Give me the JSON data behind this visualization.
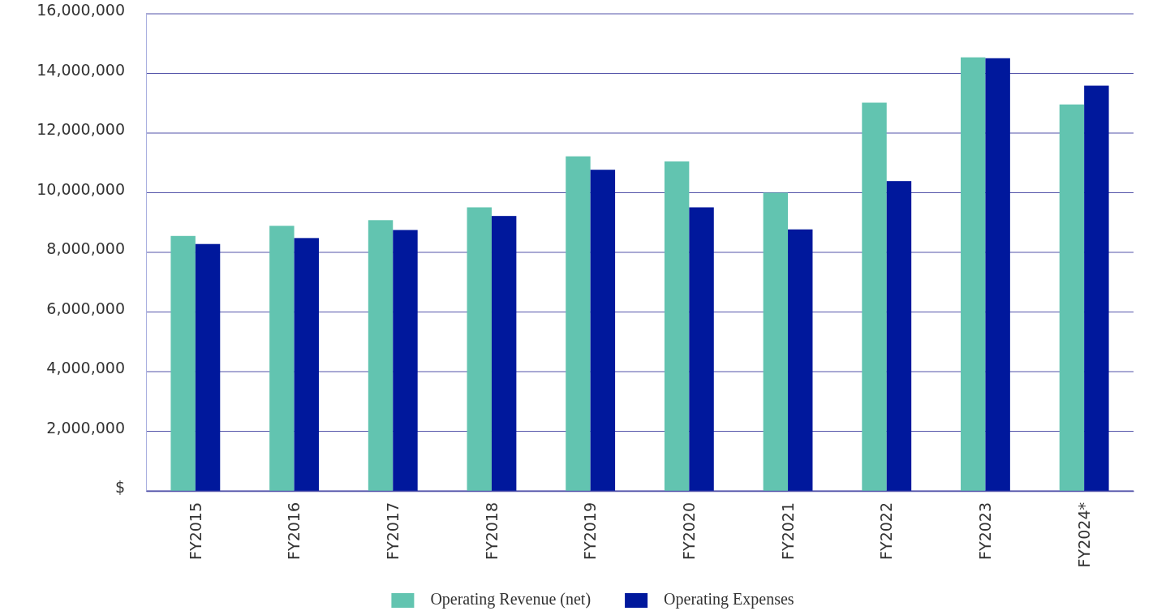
{
  "chart_data": {
    "type": "bar",
    "categories": [
      "FY2015",
      "FY2016",
      "FY2017",
      "FY2018",
      "FY2019",
      "FY2020",
      "FY2021",
      "FY2022",
      "FY2023",
      "FY2024*"
    ],
    "series": [
      {
        "name": "Operating Revenue (net)",
        "color": "#62c4b0",
        "values": [
          8550000,
          8890000,
          9080000,
          9510000,
          11220000,
          11050000,
          10000000,
          13020000,
          14540000,
          12960000
        ]
      },
      {
        "name": "Operating Expenses",
        "color": "#00189c",
        "values": [
          8280000,
          8480000,
          8750000,
          9220000,
          10770000,
          9510000,
          8770000,
          10390000,
          14510000,
          13590000
        ]
      }
    ],
    "ylim": [
      0,
      16000000
    ],
    "yticks": [
      {
        "value": 0,
        "label": "$"
      },
      {
        "value": 2000000,
        "label": "2,000,000"
      },
      {
        "value": 4000000,
        "label": "4,000,000"
      },
      {
        "value": 6000000,
        "label": "6,000,000"
      },
      {
        "value": 8000000,
        "label": "8,000,000"
      },
      {
        "value": 10000000,
        "label": "10,000,000"
      },
      {
        "value": 12000000,
        "label": "12,000,000"
      },
      {
        "value": 14000000,
        "label": "14,000,000"
      },
      {
        "value": 16000000,
        "label": "16,000,000"
      }
    ],
    "grid": "y",
    "legend": "bottom"
  }
}
